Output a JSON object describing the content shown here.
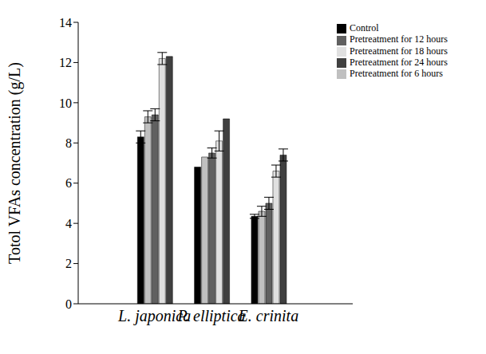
{
  "chart_data": {
    "type": "bar",
    "y_label": "Totol VFAs concentration (g/L)",
    "categories": [
      "L. japonica",
      "P. elliptica",
      "E. crinita"
    ],
    "series": [
      {
        "name": "Control",
        "color": "#000000",
        "values": [
          8.3,
          6.8,
          4.35
        ],
        "errors": [
          0.3,
          0,
          0.1
        ]
      },
      {
        "name": "Pretreatment for 6 hours",
        "color": "#c0c0c0",
        "values": [
          9.3,
          7.3,
          4.6
        ],
        "errors": [
          0.3,
          0,
          0.25
        ]
      },
      {
        "name": "Pretreatment for 12 hours",
        "color": "#606060",
        "values": [
          9.4,
          7.5,
          5.0
        ],
        "errors": [
          0.3,
          0.25,
          0.3
        ]
      },
      {
        "name": "Pretreatment for 18 hours",
        "color": "#e0e0e0",
        "values": [
          12.2,
          8.1,
          6.6
        ],
        "errors": [
          0.3,
          0.5,
          0.3
        ]
      },
      {
        "name": "Pretreatment for 24 hours",
        "color": "#404040",
        "values": [
          12.3,
          9.2,
          7.4
        ],
        "errors": [
          0,
          0,
          0.3
        ]
      }
    ],
    "ylim": [
      0,
      14
    ],
    "yticks": [
      0,
      2,
      4,
      6,
      8,
      10,
      12,
      14
    ],
    "grid": false,
    "legend": "upper right"
  }
}
